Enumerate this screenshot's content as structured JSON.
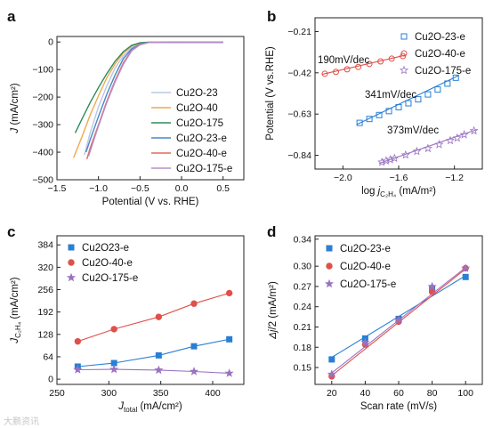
{
  "chart_data": [
    {
      "panel": "a",
      "type": "line",
      "xlabel": "Potential (V vs. RHE)",
      "ylabel": "J (mA/cm²)",
      "xlim": [
        -1.5,
        0.75
      ],
      "ylim": [
        -500,
        20
      ],
      "xticks": [
        -1.5,
        -1.0,
        -0.5,
        0.0,
        0.5
      ],
      "yticks": [
        0,
        -100,
        -200,
        -300,
        -400,
        -500
      ],
      "legend_position": "bottom-right",
      "series": [
        {
          "name": "Cu2O-23",
          "color": "#b9c7e6",
          "points": [
            [
              -1.17,
              -410
            ],
            [
              -1.1,
              -330
            ],
            [
              -1.0,
              -235
            ],
            [
              -0.9,
              -160
            ],
            [
              -0.8,
              -95
            ],
            [
              -0.7,
              -50
            ],
            [
              -0.6,
              -20
            ],
            [
              -0.5,
              -6
            ],
            [
              -0.4,
              -2
            ],
            [
              0.0,
              -1
            ],
            [
              0.5,
              -1
            ]
          ]
        },
        {
          "name": "Cu2O-40",
          "color": "#f1a94e",
          "points": [
            [
              -1.3,
              -420
            ],
            [
              -1.2,
              -345
            ],
            [
              -1.1,
              -265
            ],
            [
              -1.0,
              -195
            ],
            [
              -0.9,
              -130
            ],
            [
              -0.8,
              -80
            ],
            [
              -0.7,
              -40
            ],
            [
              -0.6,
              -15
            ],
            [
              -0.5,
              -5
            ],
            [
              -0.4,
              -1
            ],
            [
              0.5,
              -1
            ]
          ]
        },
        {
          "name": "Cu2O-175",
          "color": "#2e8b57",
          "points": [
            [
              -1.28,
              -330
            ],
            [
              -1.2,
              -280
            ],
            [
              -1.1,
              -220
            ],
            [
              -1.0,
              -165
            ],
            [
              -0.9,
              -115
            ],
            [
              -0.8,
              -70
            ],
            [
              -0.7,
              -35
            ],
            [
              -0.6,
              -12
            ],
            [
              -0.5,
              -3
            ],
            [
              -0.4,
              -1
            ],
            [
              0.5,
              -1
            ]
          ]
        },
        {
          "name": "Cu2O-23-e",
          "color": "#4a86c8",
          "points": [
            [
              -1.15,
              -400
            ],
            [
              -1.1,
              -355
            ],
            [
              -1.0,
              -270
            ],
            [
              -0.9,
              -190
            ],
            [
              -0.8,
              -120
            ],
            [
              -0.7,
              -60
            ],
            [
              -0.6,
              -25
            ],
            [
              -0.5,
              -8
            ],
            [
              -0.4,
              -2
            ],
            [
              0.0,
              -1
            ],
            [
              0.5,
              -1
            ]
          ]
        },
        {
          "name": "Cu2O-40-e",
          "color": "#e06a5a",
          "points": [
            [
              -1.14,
              -425
            ],
            [
              -1.1,
              -385
            ],
            [
              -1.0,
              -300
            ],
            [
              -0.9,
              -215
            ],
            [
              -0.8,
              -140
            ],
            [
              -0.7,
              -75
            ],
            [
              -0.6,
              -30
            ],
            [
              -0.5,
              -10
            ],
            [
              -0.4,
              -2
            ],
            [
              0.0,
              -1
            ],
            [
              0.5,
              -1
            ]
          ]
        },
        {
          "name": "Cu2O-175-e",
          "color": "#b58fcb",
          "points": [
            [
              -1.12,
              -415
            ],
            [
              -1.05,
              -350
            ],
            [
              -1.0,
              -305
            ],
            [
              -0.9,
              -220
            ],
            [
              -0.8,
              -145
            ],
            [
              -0.7,
              -80
            ],
            [
              -0.6,
              -32
            ],
            [
              -0.5,
              -10
            ],
            [
              -0.4,
              -2
            ],
            [
              0.0,
              -1
            ],
            [
              0.5,
              -1
            ]
          ]
        }
      ]
    },
    {
      "panel": "b",
      "type": "scatter",
      "xlabel": "log j_C2H4 (mA/m²)",
      "ylabel": "Potential (V vs.RHE)",
      "xlim": [
        -2.2,
        -1.0
      ],
      "ylim": [
        -0.91,
        -0.14
      ],
      "xticks": [
        -2.0,
        -1.6,
        -1.2
      ],
      "yticks": [
        -0.21,
        -0.42,
        -0.63,
        -0.84
      ],
      "legend_position": "top-right",
      "annotations": [
        "190mV/dec",
        "341mV/dec",
        "373mV/dec"
      ],
      "series": [
        {
          "name": "Cu2O-23-e",
          "marker": "square",
          "color": "#2a7fd4",
          "points": [
            [
              -1.88,
              -0.675
            ],
            [
              -1.81,
              -0.655
            ],
            [
              -1.74,
              -0.635
            ],
            [
              -1.67,
              -0.615
            ],
            [
              -1.6,
              -0.595
            ],
            [
              -1.53,
              -0.575
            ],
            [
              -1.46,
              -0.555
            ],
            [
              -1.39,
              -0.53
            ],
            [
              -1.32,
              -0.505
            ],
            [
              -1.25,
              -0.475
            ],
            [
              -1.19,
              -0.445
            ]
          ],
          "fit": [
            [
              -1.9,
              -0.683
            ],
            [
              -1.17,
              -0.434
            ]
          ]
        },
        {
          "name": "Cu2O-40-e",
          "marker": "circle",
          "color": "#e0504a",
          "points": [
            [
              -2.13,
              -0.425
            ],
            [
              -2.05,
              -0.415
            ],
            [
              -1.97,
              -0.402
            ],
            [
              -1.89,
              -0.39
            ],
            [
              -1.81,
              -0.375
            ],
            [
              -1.73,
              -0.362
            ],
            [
              -1.65,
              -0.348
            ],
            [
              -1.57,
              -0.335
            ]
          ],
          "fit": [
            [
              -2.15,
              -0.428
            ],
            [
              -1.55,
              -0.33
            ]
          ]
        },
        {
          "name": "Cu2O-175-e",
          "marker": "star",
          "color": "#9a72c2",
          "points": [
            [
              -1.72,
              -0.875
            ],
            [
              -1.69,
              -0.868
            ],
            [
              -1.66,
              -0.862
            ],
            [
              -1.63,
              -0.855
            ],
            [
              -1.55,
              -0.838
            ],
            [
              -1.47,
              -0.82
            ],
            [
              -1.39,
              -0.805
            ],
            [
              -1.31,
              -0.785
            ],
            [
              -1.23,
              -0.765
            ],
            [
              -1.18,
              -0.752
            ],
            [
              -1.13,
              -0.735
            ],
            [
              -1.06,
              -0.715
            ]
          ],
          "fit": [
            [
              -1.74,
              -0.881
            ],
            [
              -1.04,
              -0.709
            ]
          ]
        }
      ]
    },
    {
      "panel": "c",
      "type": "scatter",
      "xlabel": "J_total (mA/cm²)",
      "ylabel": "J_C2H4 (mA/cm²)",
      "xlim": [
        250,
        430
      ],
      "ylim": [
        -15,
        410
      ],
      "xticks": [
        250,
        300,
        350,
        400
      ],
      "yticks": [
        0,
        64,
        128,
        192,
        256,
        320,
        384
      ],
      "legend_position": "top-left",
      "series": [
        {
          "name": "Cu2O23-e",
          "marker": "square",
          "color": "#2a7fd4",
          "points": [
            [
              270,
              36
            ],
            [
              305,
              46
            ],
            [
              348,
              68
            ],
            [
              382,
              94
            ],
            [
              416,
              114
            ]
          ]
        },
        {
          "name": "Cu2O-40-e",
          "marker": "circle",
          "color": "#e0504a",
          "points": [
            [
              270,
              108
            ],
            [
              305,
              143
            ],
            [
              348,
              178
            ],
            [
              382,
              216
            ],
            [
              416,
              246
            ]
          ]
        },
        {
          "name": "Cu2O-175-e",
          "marker": "star",
          "color": "#9a72c2",
          "points": [
            [
              270,
              27
            ],
            [
              305,
              28
            ],
            [
              348,
              26
            ],
            [
              382,
              22
            ],
            [
              416,
              17
            ]
          ]
        }
      ]
    },
    {
      "panel": "d",
      "type": "scatter",
      "xlabel": "Scan rate (mV/s)",
      "ylabel": "Δj/2 (mA/m²)",
      "xlim": [
        10,
        110
      ],
      "ylim": [
        0.125,
        0.345
      ],
      "xticks": [
        20,
        40,
        60,
        80,
        100
      ],
      "yticks": [
        0.15,
        0.18,
        0.21,
        0.24,
        0.27,
        0.3,
        0.34
      ],
      "legend_position": "top-left",
      "series": [
        {
          "name": "Cu2O-23-e",
          "marker": "square",
          "color": "#2a7fd4",
          "points": [
            [
              20,
              0.162
            ],
            [
              40,
              0.193
            ],
            [
              60,
              0.222
            ],
            [
              80,
              0.266
            ],
            [
              100,
              0.284
            ]
          ],
          "fit": [
            [
              20,
              0.165
            ],
            [
              100,
              0.286
            ]
          ]
        },
        {
          "name": "Cu2O-40-e",
          "marker": "circle",
          "color": "#e0504a",
          "points": [
            [
              20,
              0.137
            ],
            [
              40,
              0.184
            ],
            [
              60,
              0.218
            ],
            [
              80,
              0.262
            ],
            [
              100,
              0.297
            ]
          ],
          "fit": [
            [
              20,
              0.138
            ],
            [
              100,
              0.296
            ]
          ]
        },
        {
          "name": "Cu2O-175-e",
          "marker": "star",
          "color": "#9a72c2",
          "points": [
            [
              20,
              0.14
            ],
            [
              40,
              0.187
            ],
            [
              60,
              0.22
            ],
            [
              80,
              0.27
            ],
            [
              100,
              0.297
            ]
          ],
          "fit": [
            [
              20,
              0.142
            ],
            [
              100,
              0.298
            ]
          ]
        }
      ]
    }
  ],
  "watermark": "大鹏资讯"
}
